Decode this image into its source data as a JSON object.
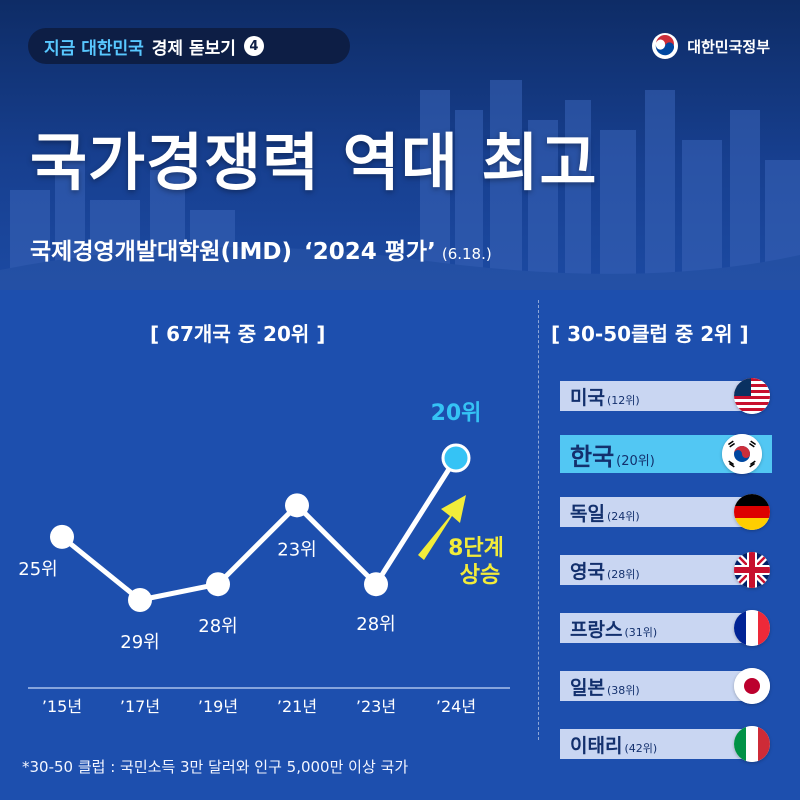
{
  "header": {
    "series_highlight": "지금 대한민국",
    "series_rest": "경제 돋보기",
    "series_number": "4",
    "gov_label": "대한민국정부",
    "headline": "국가경쟁력 역대 최고",
    "subhead_org": "국제경영개발대학원(IMD)",
    "subhead_eval": "‘2024 평가’",
    "subhead_date": "(6.18.)"
  },
  "chart_data": {
    "type": "line",
    "title": "[ 67개국 중 20위 ]",
    "categories": [
      "’15년",
      "’17년",
      "’19년",
      "’21년",
      "’23년",
      "’24년"
    ],
    "values": [
      25,
      29,
      28,
      23,
      28,
      20
    ],
    "point_labels": [
      "25위",
      "29위",
      "28위",
      "23위",
      "28위",
      "20위"
    ],
    "axis_inverted": true,
    "annotation_line1": "8단계",
    "annotation_line2": "상승",
    "highlight_color": "#35c3f5",
    "arrow_color": "#f2ec3a"
  },
  "club": {
    "title": "[ 30-50클럽 중 2위 ]",
    "items": [
      {
        "name": "미국",
        "rank": "(12위)"
      },
      {
        "name": "한국",
        "rank": "(20위)"
      },
      {
        "name": "독일",
        "rank": "(24위)"
      },
      {
        "name": "영국",
        "rank": "(28위)"
      },
      {
        "name": "프랑스",
        "rank": "(31위)"
      },
      {
        "name": "일본",
        "rank": "(38위)"
      },
      {
        "name": "이태리",
        "rank": "(42위)"
      }
    ]
  },
  "footnote": "*30-50 클럽 : 국민소득 3만 달러와 인구 5,000만 이상 국가"
}
